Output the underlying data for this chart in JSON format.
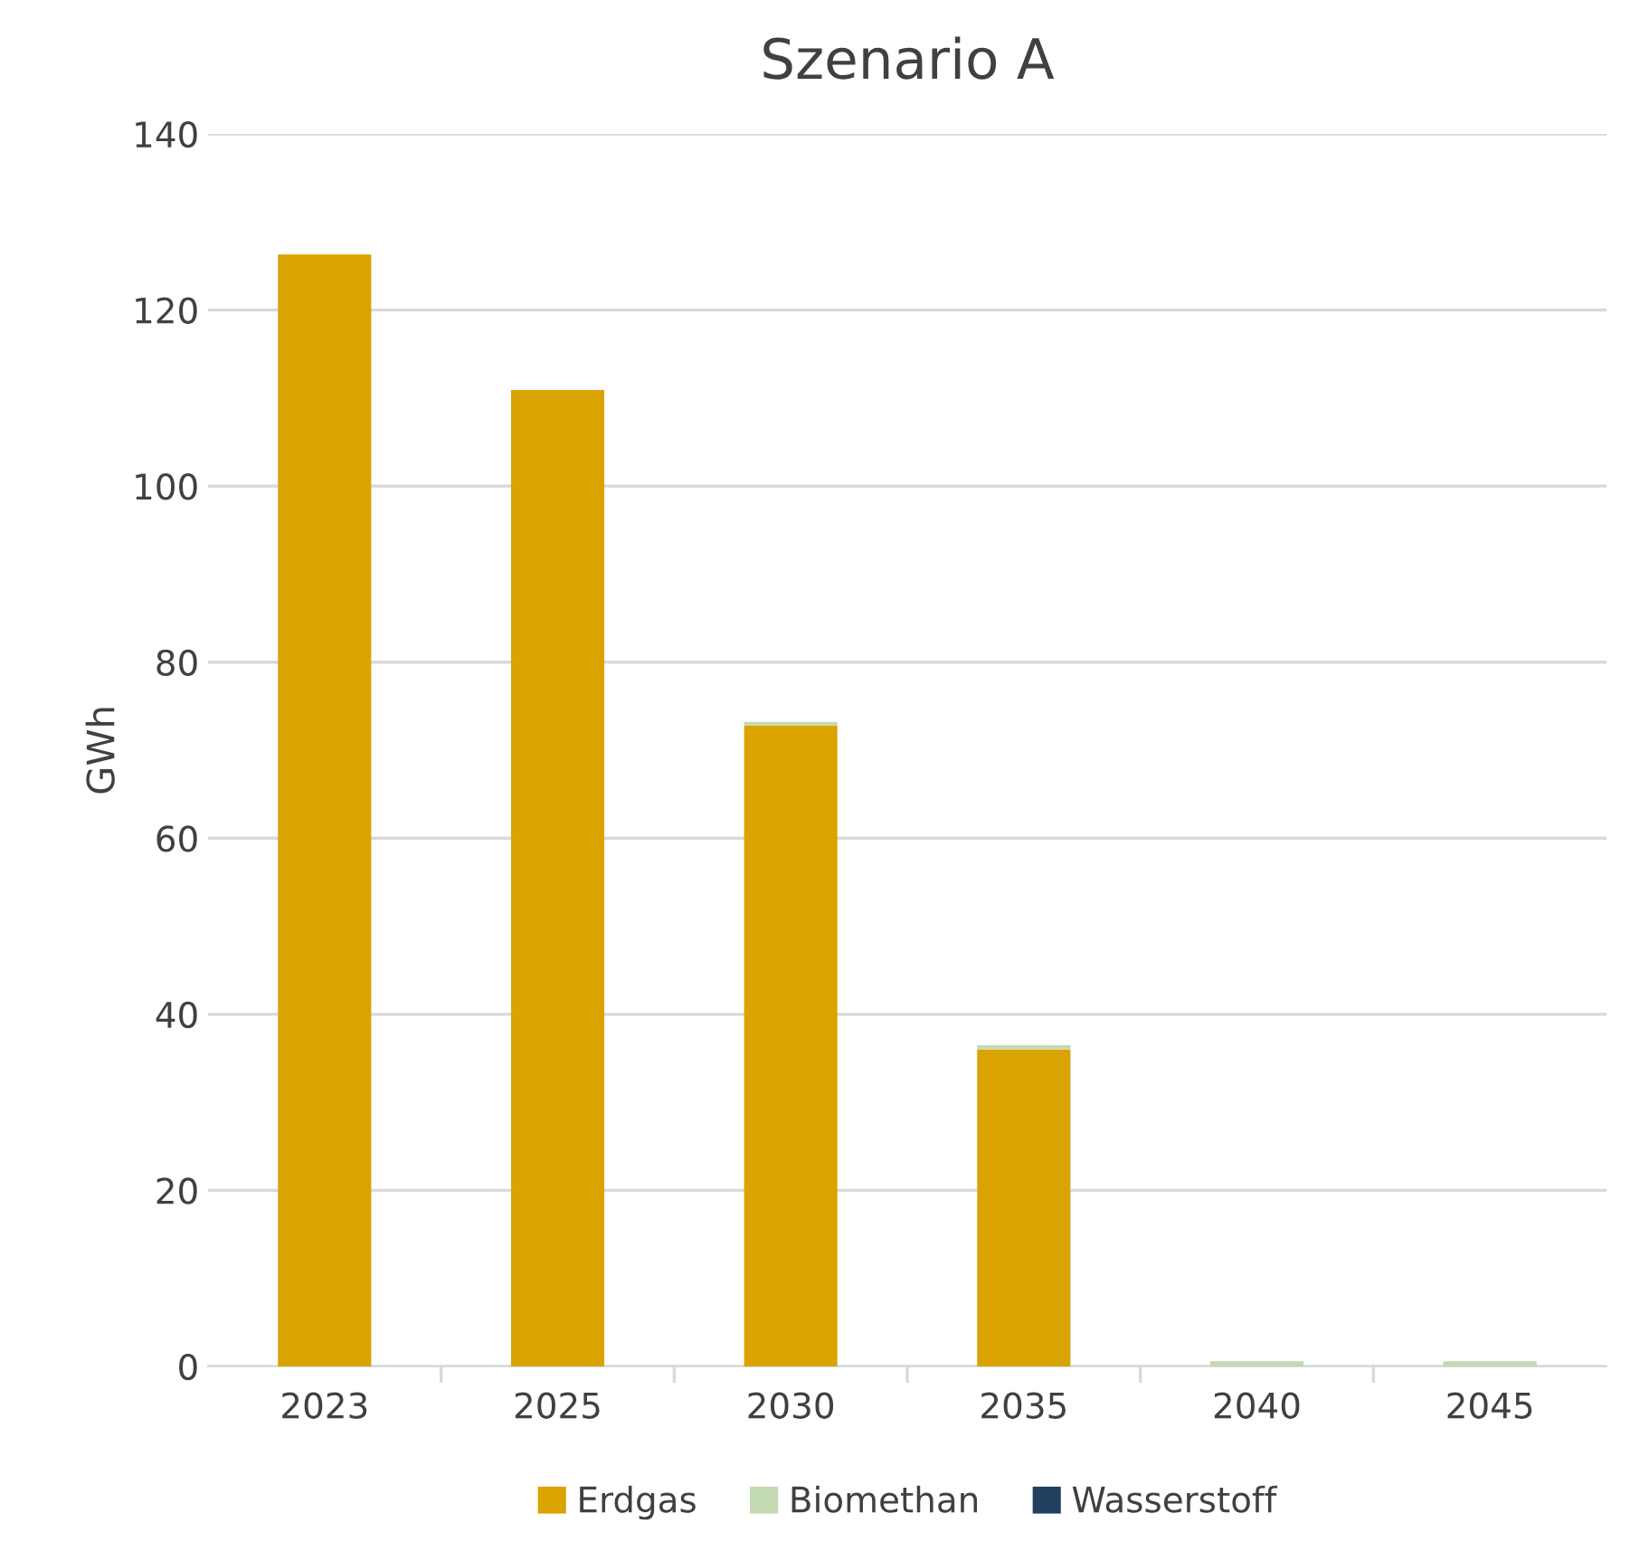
{
  "chart_data": {
    "type": "bar",
    "stacked": true,
    "title": "Szenario A",
    "ylabel": "GWh",
    "categories": [
      "2023",
      "2025",
      "2030",
      "2035",
      "2040",
      "2045"
    ],
    "series": [
      {
        "name": "Erdgas",
        "color": "#d9a300",
        "values": [
          126.3,
          110.9,
          72.8,
          36.0,
          0,
          0
        ]
      },
      {
        "name": "Biomethan",
        "color": "#c3d9b3",
        "values": [
          0,
          0,
          0.4,
          0.5,
          0.6,
          0.6
        ]
      },
      {
        "name": "Wasserstoff",
        "color": "#213f5e",
        "values": [
          0,
          0,
          0,
          0,
          0,
          0
        ]
      }
    ],
    "ylim": [
      0,
      140
    ],
    "yticks": [
      0,
      20,
      40,
      60,
      80,
      100,
      120,
      140
    ],
    "grid": "y",
    "legend": "bottom"
  }
}
